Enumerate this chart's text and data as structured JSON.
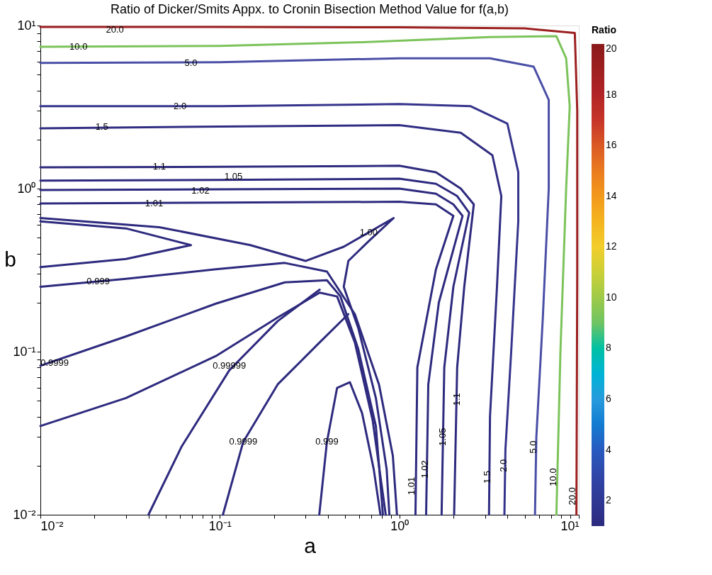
{
  "chart_data": {
    "type": "line",
    "title": "Ratio of Dicker/Smits Appx. to Cronin Bisection Method Value for f(a,b)",
    "xlabel": "a",
    "ylabel": "b",
    "clabel": "Ratio",
    "clim": [
      1,
      20
    ],
    "cticks": [
      2,
      4,
      6,
      8,
      10,
      12,
      14,
      16,
      18,
      20
    ],
    "log": "xy",
    "grid": false,
    "xlim": [
      0.01,
      10
    ],
    "ylim": [
      0.01,
      10
    ],
    "xticks": [
      {
        "value": 0.01,
        "label": "10⁻²"
      },
      {
        "value": 0.02,
        "label": null
      },
      {
        "value": 0.03,
        "label": null
      },
      {
        "value": 0.04,
        "label": null
      },
      {
        "value": 0.05,
        "label": null
      },
      {
        "value": 0.06,
        "label": null
      },
      {
        "value": 0.07,
        "label": null
      },
      {
        "value": 0.08,
        "label": null
      },
      {
        "value": 0.09,
        "label": null
      },
      {
        "value": 0.1,
        "label": "10⁻¹"
      },
      {
        "value": 0.2,
        "label": null
      },
      {
        "value": 0.3,
        "label": null
      },
      {
        "value": 0.4,
        "label": null
      },
      {
        "value": 0.5,
        "label": null
      },
      {
        "value": 0.6,
        "label": null
      },
      {
        "value": 0.7,
        "label": null
      },
      {
        "value": 0.8,
        "label": null
      },
      {
        "value": 0.9,
        "label": null
      },
      {
        "value": 1,
        "label": "10⁰"
      },
      {
        "value": 2,
        "label": null
      },
      {
        "value": 3,
        "label": null
      },
      {
        "value": 4,
        "label": null
      },
      {
        "value": 5,
        "label": null
      },
      {
        "value": 6,
        "label": null
      },
      {
        "value": 7,
        "label": null
      },
      {
        "value": 8,
        "label": null
      },
      {
        "value": 9,
        "label": null
      },
      {
        "value": 10,
        "label": "10¹"
      }
    ],
    "yticks": [
      {
        "value": 0.01,
        "label": "10⁻²"
      },
      {
        "value": 0.02,
        "label": null
      },
      {
        "value": 0.03,
        "label": null
      },
      {
        "value": 0.04,
        "label": null
      },
      {
        "value": 0.05,
        "label": null
      },
      {
        "value": 0.06,
        "label": null
      },
      {
        "value": 0.07,
        "label": null
      },
      {
        "value": 0.08,
        "label": null
      },
      {
        "value": 0.09,
        "label": null
      },
      {
        "value": 0.1,
        "label": "10⁻¹"
      },
      {
        "value": 0.2,
        "label": null
      },
      {
        "value": 0.3,
        "label": null
      },
      {
        "value": 0.4,
        "label": null
      },
      {
        "value": 0.5,
        "label": null
      },
      {
        "value": 0.6,
        "label": null
      },
      {
        "value": 0.7,
        "label": null
      },
      {
        "value": 0.8,
        "label": null
      },
      {
        "value": 0.9,
        "label": null
      },
      {
        "value": 1,
        "label": "10⁰"
      },
      {
        "value": 2,
        "label": null
      },
      {
        "value": 3,
        "label": null
      },
      {
        "value": 4,
        "label": null
      },
      {
        "value": 5,
        "label": null
      },
      {
        "value": 6,
        "label": null
      },
      {
        "value": 7,
        "label": null
      },
      {
        "value": 8,
        "label": null
      },
      {
        "value": 9,
        "label": null
      },
      {
        "value": 10,
        "label": "10¹"
      }
    ],
    "series": [
      {
        "type": "line",
        "color": "#9c1f1f",
        "x": [
          0.01,
          0.1,
          1,
          5,
          9.5,
          9.8,
          9.8,
          9.7
        ],
        "values": [
          9.8,
          9.8,
          9.75,
          9.6,
          9.0,
          3,
          0.3,
          0.01
        ]
      },
      {
        "type": "line",
        "color": "#7cc35a",
        "x": [
          0.01,
          0.1,
          0.63,
          3.2,
          7.5,
          8.5,
          8.9,
          8.5,
          7.9,
          7.5
        ],
        "values": [
          7.4,
          7.5,
          7.9,
          8.5,
          8.6,
          6.3,
          3.2,
          1.0,
          0.1,
          0.01
        ]
      },
      {
        "type": "line",
        "color": "#4a4fa6",
        "x": [
          0.01,
          0.1,
          1,
          3.2,
          5.6,
          6.8,
          6.8,
          6.3,
          5.8,
          5.7
        ],
        "values": [
          5.9,
          5.95,
          6.3,
          6.3,
          5.6,
          3.5,
          1.0,
          0.16,
          0.03,
          0.01
        ]
      },
      {
        "type": "line",
        "color": "#35348c",
        "x": [
          0.01,
          0.1,
          1,
          2.5,
          4,
          4.6,
          4.6,
          4.2,
          3.9,
          3.85
        ],
        "values": [
          3.2,
          3.2,
          3.3,
          3.2,
          2.5,
          1.26,
          0.63,
          0.1,
          0.025,
          0.01
        ]
      },
      {
        "type": "line",
        "color": "#302d82",
        "x": [
          0.01,
          0.1,
          1,
          2.2,
          3.3,
          3.7,
          3.5,
          3.2,
          3.16
        ],
        "values": [
          2.34,
          2.4,
          2.45,
          2.2,
          1.6,
          0.9,
          0.25,
          0.04,
          0.01
        ]
      },
      {
        "type": "line",
        "color": "#2e2a7e",
        "x": [
          0.01,
          0.1,
          1,
          1.6,
          2.2,
          2.6,
          2.3,
          2.1,
          2.02
        ],
        "values": [
          1.35,
          1.36,
          1.38,
          1.26,
          1.0,
          0.8,
          0.25,
          0.08,
          0.01
        ]
      },
      {
        "type": "line",
        "color": "#2e2a7e",
        "x": [
          0.01,
          0.1,
          1,
          1.6,
          2.1,
          2.45,
          2.0,
          1.78,
          1.72
        ],
        "values": [
          1.12,
          1.13,
          1.15,
          1.07,
          0.9,
          0.71,
          0.25,
          0.08,
          0.01
        ]
      },
      {
        "type": "line",
        "color": "#2e2a7e",
        "x": [
          0.01,
          0.1,
          1,
          1.6,
          2.0,
          2.25,
          1.66,
          1.45,
          1.41
        ],
        "values": [
          0.98,
          0.99,
          1.0,
          0.93,
          0.8,
          0.68,
          0.2,
          0.063,
          0.01
        ]
      },
      {
        "type": "line",
        "color": "#2e2a7e",
        "x": [
          0.01,
          0.1,
          1,
          1.6,
          2.0,
          1.6,
          1.26,
          1.23
        ],
        "values": [
          0.81,
          0.82,
          0.83,
          0.8,
          0.68,
          0.32,
          0.08,
          0.01
        ]
      },
      {
        "type": "line",
        "color": "#2e2a7e",
        "x": [
          0.01,
          0.03,
          0.069,
          0.03,
          0.01
        ],
        "values": [
          0.63,
          0.57,
          0.45,
          0.37,
          0.33
        ]
      },
      {
        "type": "line",
        "color": "#2e2a7e",
        "x": [
          0.01,
          0.046,
          0.148,
          0.3,
          0.49,
          0.93,
          0.68,
          0.52,
          0.49,
          0.59,
          0.74,
          0.85,
          0.88
        ],
        "values": [
          0.66,
          0.58,
          0.45,
          0.36,
          0.44,
          0.66,
          0.48,
          0.36,
          0.25,
          0.14,
          0.052,
          0.019,
          0.01
        ]
      },
      {
        "type": "line",
        "color": "#2e2a7e",
        "x": [
          0.01,
          0.03,
          0.095,
          0.23,
          0.395,
          0.565,
          0.77,
          0.92,
          0.97
        ],
        "values": [
          0.25,
          0.28,
          0.32,
          0.35,
          0.31,
          0.17,
          0.063,
          0.023,
          0.01
        ]
      },
      {
        "type": "line",
        "color": "#2e2a7e",
        "x": [
          0.01,
          0.03,
          0.095,
          0.23,
          0.395,
          0.47,
          0.59,
          0.74,
          0.81
        ],
        "values": [
          0.082,
          0.124,
          0.197,
          0.266,
          0.274,
          0.218,
          0.104,
          0.035,
          0.01
        ]
      },
      {
        "type": "line",
        "color": "#2e2a7e",
        "x": [
          0.01,
          0.03,
          0.095,
          0.21,
          0.36,
          0.45,
          0.565,
          0.71,
          0.84
        ],
        "values": [
          0.035,
          0.052,
          0.094,
          0.162,
          0.23,
          0.218,
          0.114,
          0.038,
          0.01
        ]
      },
      {
        "type": "line",
        "color": "#2e2a7e",
        "x": [
          0.04,
          0.061,
          0.113,
          0.21,
          0.36
        ],
        "values": [
          0.01,
          0.026,
          0.077,
          0.154,
          0.24
        ]
      },
      {
        "type": "line",
        "color": "#2e2a7e",
        "x": [
          0.104,
          0.135,
          0.21,
          0.36,
          0.52
        ],
        "values": [
          0.01,
          0.028,
          0.063,
          0.114,
          0.17
        ]
      },
      {
        "type": "line",
        "color": "#2e2a7e",
        "x": [
          0.358,
          0.395,
          0.45,
          0.53,
          0.62,
          0.72,
          0.785
        ],
        "values": [
          0.01,
          0.028,
          0.06,
          0.065,
          0.042,
          0.019,
          0.01
        ]
      }
    ],
    "annotations": [
      {
        "text": "20.0",
        "x": 0.026,
        "y": 9.4
      },
      {
        "text": "10.0",
        "x": 0.0163,
        "y": 7.4
      },
      {
        "text": "5.0",
        "x": 0.069,
        "y": 5.9
      },
      {
        "text": "2.0",
        "x": 0.06,
        "y": 3.2
      },
      {
        "text": "1.5",
        "x": 0.022,
        "y": 2.4
      },
      {
        "text": "1.1",
        "x": 0.046,
        "y": 1.37
      },
      {
        "text": "1.05",
        "x": 0.119,
        "y": 1.18
      },
      {
        "text": "1.02",
        "x": 0.078,
        "y": 0.97
      },
      {
        "text": "1.01",
        "x": 0.043,
        "y": 0.81
      },
      {
        "text": "1.00",
        "x": 0.675,
        "y": 0.54
      },
      {
        "text": "0.999",
        "x": 0.021,
        "y": 0.27
      },
      {
        "text": "0.9999",
        "x": 0.012,
        "y": 0.085
      },
      {
        "text": "0.99999",
        "x": 0.113,
        "y": 0.082
      },
      {
        "text": "0.9999",
        "x": 0.135,
        "y": 0.028
      },
      {
        "text": "0.999",
        "x": 0.395,
        "y": 0.028
      },
      {
        "text": "1.01",
        "x": 1.17,
        "y": 0.015
      },
      {
        "text": "1.02",
        "x": 1.39,
        "y": 0.019
      },
      {
        "text": "1.05",
        "x": 1.74,
        "y": 0.03
      },
      {
        "text": "1.1",
        "x": 2.1,
        "y": 0.051
      },
      {
        "text": "1.5",
        "x": 3.1,
        "y": 0.017
      },
      {
        "text": "2.0",
        "x": 3.8,
        "y": 0.02
      },
      {
        "text": "5.0",
        "x": 5.6,
        "y": 0.026
      },
      {
        "text": "10.0",
        "x": 7.2,
        "y": 0.017
      },
      {
        "text": "20.0",
        "x": 9.2,
        "y": 0.013
      }
    ]
  }
}
